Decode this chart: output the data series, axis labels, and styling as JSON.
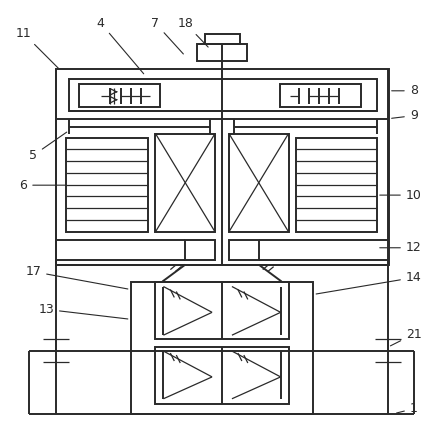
{
  "bg_color": "#ffffff",
  "line_color": "#2a2a2a",
  "lw": 1.4,
  "tlw": 0.9
}
